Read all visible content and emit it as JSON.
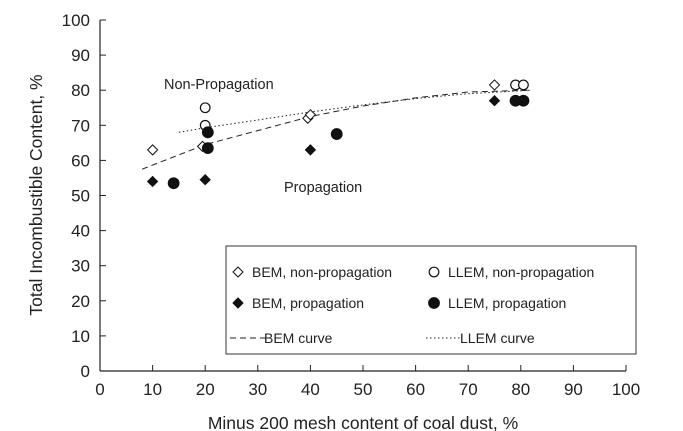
{
  "chart_data": {
    "type": "scatter",
    "xlabel": "Minus 200 mesh content of coal dust, %",
    "ylabel": "Total Incombustible Content, %",
    "xlim": [
      0,
      100
    ],
    "ylim": [
      0,
      100
    ],
    "xticks": [
      "0",
      "10",
      "20",
      "30",
      "40",
      "50",
      "60",
      "70",
      "80",
      "90",
      "100"
    ],
    "yticks": [
      "0",
      "10",
      "20",
      "30",
      "40",
      "50",
      "60",
      "70",
      "80",
      "90",
      "100"
    ],
    "grid": false,
    "legend_position": "bottom-right",
    "annotations": [
      {
        "id": "non-propagation-label",
        "text": "Non-Propagation",
        "x": 8,
        "y": 84
      },
      {
        "id": "propagation-label",
        "text": "Propagation",
        "x": 43.5,
        "y": 52.5
      }
    ],
    "series": [
      {
        "name": "BEM, non-propagation",
        "marker": "diamond-open",
        "points": [
          [
            10,
            63
          ],
          [
            19.5,
            64
          ],
          [
            39.5,
            72
          ],
          [
            40,
            73
          ],
          [
            75,
            81.5
          ]
        ]
      },
      {
        "name": "LLEM, non-propagation",
        "marker": "circle-open",
        "points": [
          [
            20,
            75
          ],
          [
            20,
            70
          ],
          [
            79,
            81.5
          ],
          [
            80.5,
            81.5
          ]
        ]
      },
      {
        "name": "BEM, propagation",
        "marker": "diamond-filled",
        "points": [
          [
            10,
            54
          ],
          [
            20,
            54.5
          ],
          [
            40,
            63
          ],
          [
            75,
            77
          ]
        ]
      },
      {
        "name": "LLEM, propagation",
        "marker": "circle-filled",
        "points": [
          [
            14,
            53.5
          ],
          [
            20.5,
            68
          ],
          [
            20.5,
            63.5
          ],
          [
            45,
            67.5
          ],
          [
            79,
            77
          ],
          [
            80.5,
            77
          ]
        ]
      },
      {
        "name": "BEM curve",
        "line": "dashed",
        "points": [
          [
            8,
            57.5
          ],
          [
            20,
            64.5
          ],
          [
            30,
            68.5
          ],
          [
            40,
            72.5
          ],
          [
            50,
            75.5
          ],
          [
            60,
            77.8
          ],
          [
            70,
            79.5
          ],
          [
            82,
            80
          ]
        ]
      },
      {
        "name": "LLEM curve",
        "line": "dotted",
        "points": [
          [
            15,
            68
          ],
          [
            20,
            69.3
          ],
          [
            30,
            71.5
          ],
          [
            40,
            73.8
          ],
          [
            50,
            75.8
          ],
          [
            60,
            77.6
          ],
          [
            70,
            79
          ],
          [
            82,
            80
          ]
        ]
      }
    ],
    "colors": {
      "marker": "#111111",
      "axis": "#222222",
      "legend_border": "#333333"
    }
  }
}
